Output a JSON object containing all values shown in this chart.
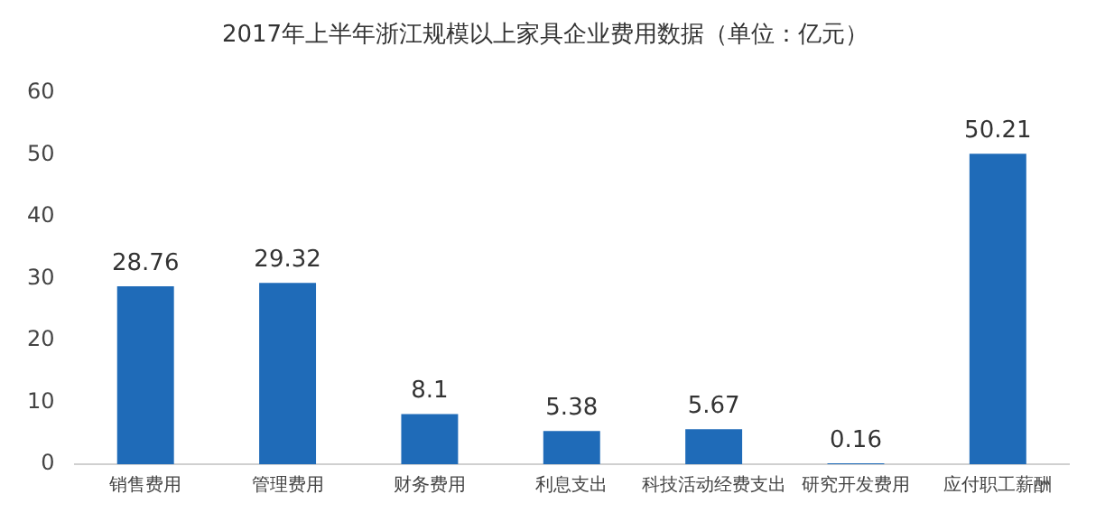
{
  "chart_data": {
    "type": "bar",
    "title": "2017年上半年浙江规模以上家具企业费用数据（单位：亿元）",
    "categories": [
      "销售费用",
      "管理费用",
      "财务费用",
      "利息支出",
      "科技活动经费支出",
      "研究开发费用",
      "应付职工薪酬"
    ],
    "values": [
      28.76,
      29.32,
      8.1,
      5.38,
      5.67,
      0.16,
      50.21
    ],
    "color": "#1f6bb8",
    "ylim": [
      0,
      60
    ],
    "yticks": [
      0,
      10,
      20,
      30,
      40,
      50,
      60
    ],
    "grid": false,
    "data_labels": true
  }
}
